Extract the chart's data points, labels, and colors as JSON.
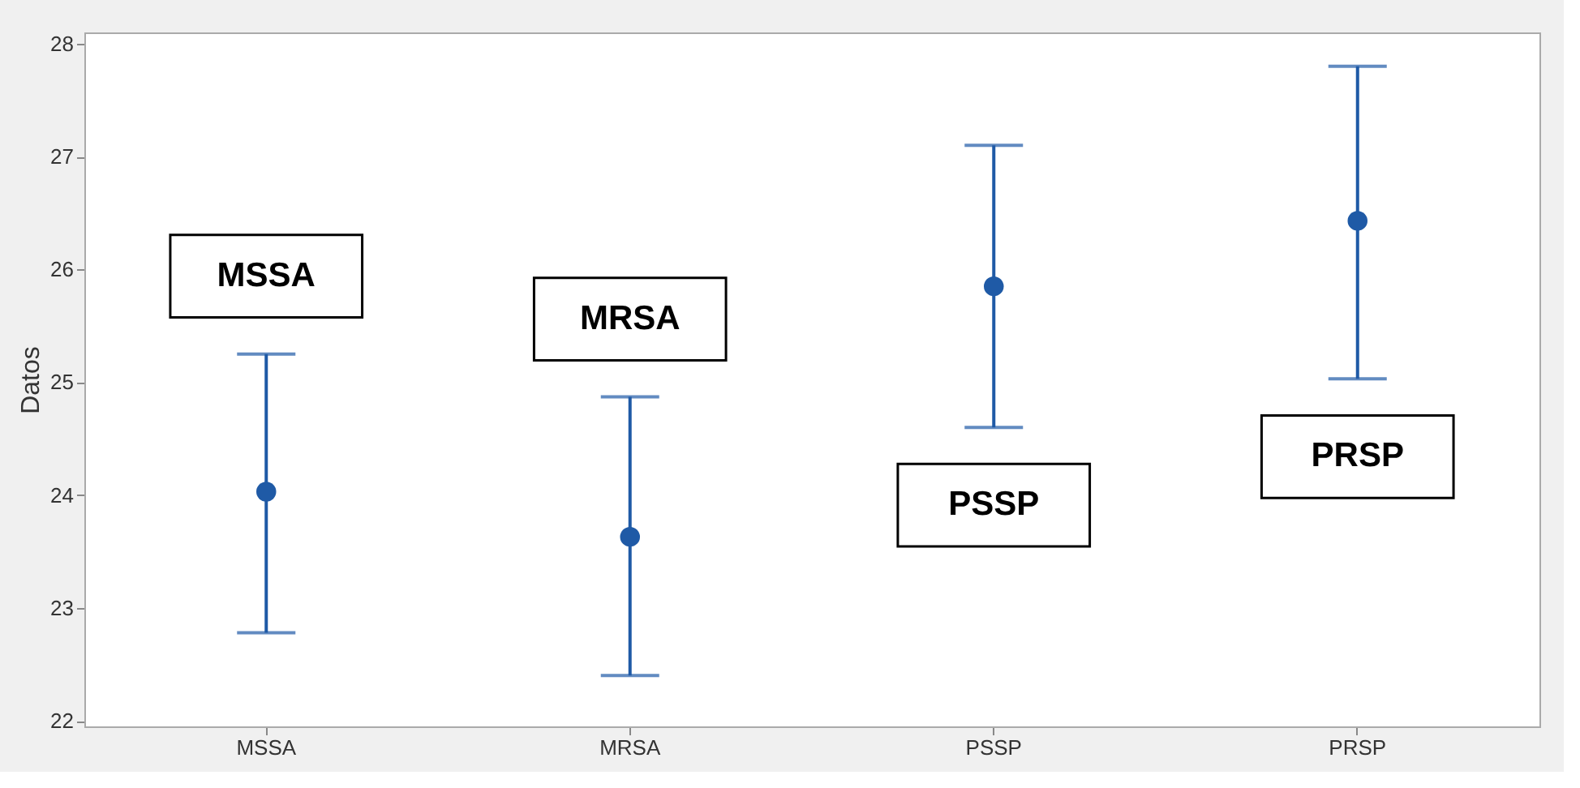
{
  "chart_data": {
    "type": "scatter",
    "ylabel": "Datos",
    "categories": [
      "MSSA",
      "MRSA",
      "PSSP",
      "PRSP"
    ],
    "series": [
      {
        "color": "#1f5aa6",
        "values": [
          24.03,
          23.63,
          25.85,
          26.43
        ],
        "errors": [
          [
            22.78,
            25.25
          ],
          [
            22.4,
            24.87
          ],
          [
            24.6,
            27.1
          ],
          [
            25.03,
            27.8
          ]
        ]
      }
    ],
    "ylim": [
      21.95,
      28.1
    ],
    "yticks": [
      22,
      23,
      24,
      25,
      26,
      27,
      28
    ],
    "annotations": [
      "MSSA",
      "MRSA",
      "PSSP",
      "PRSP"
    ],
    "marker": "circle"
  }
}
